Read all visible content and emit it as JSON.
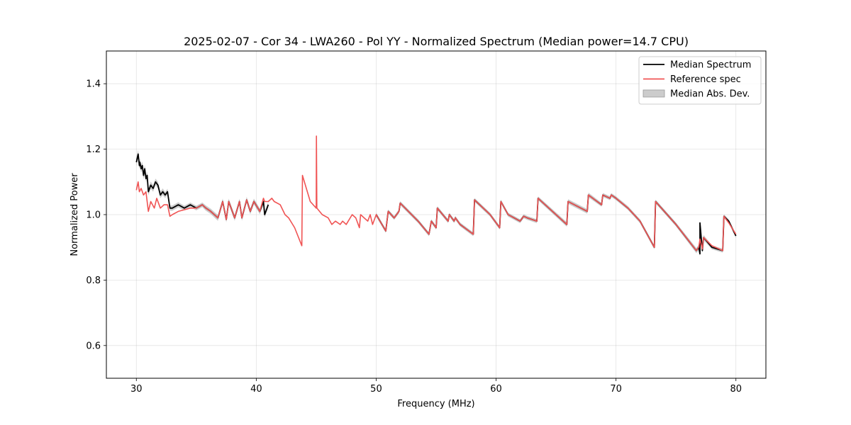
{
  "chart_data": {
    "type": "line",
    "title": "2025-02-07 - Cor 34 - LWA260 - Pol YY - Normalized Spectrum (Median power=14.7 CPU)",
    "xlabel": "Frequency (MHz)",
    "ylabel": "Normalized Power",
    "xlim": [
      27.5,
      82.5
    ],
    "ylim": [
      0.5,
      1.5
    ],
    "xticks": [
      30,
      40,
      50,
      60,
      70,
      80
    ],
    "xtick_labels": [
      "30",
      "40",
      "50",
      "60",
      "70",
      "80"
    ],
    "yticks": [
      0.6,
      0.8,
      1.0,
      1.2,
      1.4
    ],
    "ytick_labels": [
      "0.6",
      "0.8",
      "1.0",
      "1.2",
      "1.4"
    ],
    "grid": true,
    "legend_position": "top-right",
    "colors": {
      "median": "#000000",
      "reference": "#f05454",
      "band": "#9a9a9a"
    },
    "series": [
      {
        "name": "Median Abs. Dev.",
        "kind": "band",
        "x": [
          30.0,
          30.5,
          31.0,
          31.5,
          32.0,
          32.5,
          33.0,
          34.0,
          35.0,
          36.0,
          37.0,
          37.6,
          38.5,
          39.5,
          40.5,
          41.0,
          50.0,
          52.0,
          55.0,
          58.0,
          62.0,
          66.0,
          70.0,
          73.2,
          76.0,
          77.0,
          78.0,
          80.0
        ],
        "half_width": [
          0.012,
          0.012,
          0.011,
          0.01,
          0.01,
          0.009,
          0.008,
          0.007,
          0.007,
          0.008,
          0.009,
          0.009,
          0.009,
          0.009,
          0.009,
          0.009,
          0.006,
          0.006,
          0.006,
          0.006,
          0.006,
          0.007,
          0.006,
          0.006,
          0.006,
          0.008,
          0.006,
          0.006
        ]
      },
      {
        "name": "Median Spectrum",
        "x": [
          30.0,
          30.15,
          30.25,
          30.3,
          30.4,
          30.5,
          30.6,
          30.7,
          30.8,
          30.9,
          31.0,
          31.2,
          31.4,
          31.6,
          31.8,
          32.0,
          32.2,
          32.4,
          32.6,
          32.8,
          33.0,
          33.5,
          34.0,
          34.5,
          35.0,
          35.5,
          35.8,
          36.2,
          36.8,
          37.2,
          37.5,
          37.7,
          38.2,
          38.6,
          38.8,
          39.2,
          39.5,
          39.8,
          40.3,
          40.6,
          40.7,
          41.0,
          50.0,
          50.8,
          51.0,
          51.5,
          51.9,
          52.0,
          53.5,
          54.4,
          54.6,
          55.0,
          55.1,
          56.0,
          56.1,
          56.5,
          56.6,
          57.0,
          58.1,
          58.2,
          59.5,
          60.3,
          60.4,
          61.0,
          61.5,
          62.0,
          62.3,
          62.6,
          63.4,
          63.5,
          65.9,
          66.0,
          67.6,
          67.7,
          68.8,
          68.9,
          69.5,
          69.6,
          70.0,
          71.0,
          72.0,
          73.2,
          73.3,
          75.0,
          76.7,
          76.9,
          77.0,
          77.0,
          77.2,
          77.3,
          78.0,
          78.9,
          79.0,
          79.4,
          80.0
        ],
        "values": [
          1.16,
          1.185,
          1.15,
          1.16,
          1.14,
          1.15,
          1.12,
          1.14,
          1.11,
          1.12,
          1.07,
          1.09,
          1.08,
          1.1,
          1.09,
          1.06,
          1.07,
          1.06,
          1.07,
          1.02,
          1.02,
          1.03,
          1.02,
          1.03,
          1.02,
          1.03,
          1.02,
          1.01,
          0.99,
          1.04,
          0.985,
          1.04,
          0.99,
          1.04,
          0.99,
          1.045,
          1.01,
          1.04,
          1.01,
          1.04,
          1.0,
          1.03,
          1.0,
          0.95,
          1.01,
          0.99,
          1.01,
          1.035,
          0.98,
          0.94,
          0.98,
          0.96,
          1.02,
          0.98,
          1.0,
          0.98,
          0.99,
          0.97,
          0.94,
          1.045,
          1.0,
          0.96,
          1.04,
          1.0,
          0.99,
          0.98,
          0.995,
          0.99,
          0.98,
          1.05,
          0.97,
          1.04,
          1.01,
          1.06,
          1.03,
          1.06,
          1.05,
          1.06,
          1.05,
          1.02,
          0.98,
          0.9,
          1.04,
          0.97,
          0.89,
          0.9,
          0.88,
          0.975,
          0.89,
          0.93,
          0.9,
          0.89,
          0.995,
          0.98,
          0.935
        ]
      },
      {
        "name": "Reference spec",
        "x": [
          30.0,
          30.15,
          30.25,
          30.4,
          30.6,
          30.8,
          31.0,
          31.2,
          31.5,
          31.7,
          32.0,
          32.3,
          32.6,
          32.8,
          33.0,
          33.5,
          34.0,
          34.5,
          35.0,
          35.5,
          35.8,
          36.2,
          36.8,
          37.2,
          37.5,
          37.7,
          38.2,
          38.6,
          38.8,
          39.2,
          39.5,
          39.8,
          40.3,
          40.6,
          40.7,
          41.0,
          41.3,
          41.5,
          42.0,
          42.4,
          42.7,
          43.2,
          43.8,
          43.85,
          44.5,
          45.0,
          45.02,
          45.05,
          45.5,
          46.0,
          46.3,
          46.6,
          47.0,
          47.2,
          47.5,
          48.0,
          48.3,
          48.6,
          48.7,
          49.0,
          49.3,
          49.5,
          49.7,
          50.0,
          50.8,
          51.0,
          51.5,
          51.9,
          52.0,
          53.5,
          54.4,
          54.6,
          55.0,
          55.1,
          56.0,
          56.1,
          56.5,
          56.6,
          57.0,
          58.1,
          58.2,
          59.5,
          60.3,
          60.4,
          61.0,
          61.5,
          62.0,
          62.3,
          62.6,
          63.4,
          63.5,
          65.9,
          66.0,
          67.6,
          67.7,
          68.8,
          68.9,
          69.5,
          69.6,
          70.0,
          71.0,
          72.0,
          73.2,
          73.3,
          75.0,
          76.7,
          76.9,
          77.0,
          77.2,
          77.3,
          78.0,
          78.9,
          79.0,
          79.4,
          80.0
        ],
        "values": [
          1.075,
          1.1,
          1.07,
          1.08,
          1.06,
          1.07,
          1.01,
          1.04,
          1.02,
          1.05,
          1.02,
          1.03,
          1.03,
          0.995,
          1.0,
          1.01,
          1.015,
          1.02,
          1.02,
          1.03,
          1.02,
          1.01,
          0.99,
          1.04,
          0.985,
          1.04,
          0.99,
          1.04,
          0.99,
          1.045,
          1.01,
          1.04,
          1.01,
          1.05,
          1.04,
          1.04,
          1.05,
          1.04,
          1.03,
          1.0,
          0.99,
          0.96,
          0.905,
          1.12,
          1.04,
          1.02,
          1.24,
          1.02,
          1.0,
          0.99,
          0.97,
          0.98,
          0.97,
          0.98,
          0.97,
          1.0,
          0.99,
          0.96,
          1.0,
          0.99,
          0.98,
          1.0,
          0.97,
          1.0,
          0.95,
          1.01,
          0.99,
          1.01,
          1.035,
          0.98,
          0.94,
          0.98,
          0.96,
          1.02,
          0.98,
          1.0,
          0.98,
          0.99,
          0.97,
          0.94,
          1.045,
          1.0,
          0.96,
          1.04,
          1.0,
          0.99,
          0.98,
          0.995,
          0.99,
          0.98,
          1.05,
          0.97,
          1.04,
          1.01,
          1.06,
          1.03,
          1.06,
          1.05,
          1.06,
          1.05,
          1.02,
          0.98,
          0.9,
          1.04,
          0.97,
          0.89,
          0.9,
          0.925,
          0.895,
          0.93,
          0.905,
          0.89,
          0.995,
          0.975,
          0.94
        ]
      }
    ],
    "legend": [
      "Median Spectrum",
      "Reference spec",
      "Median Abs. Dev."
    ]
  }
}
